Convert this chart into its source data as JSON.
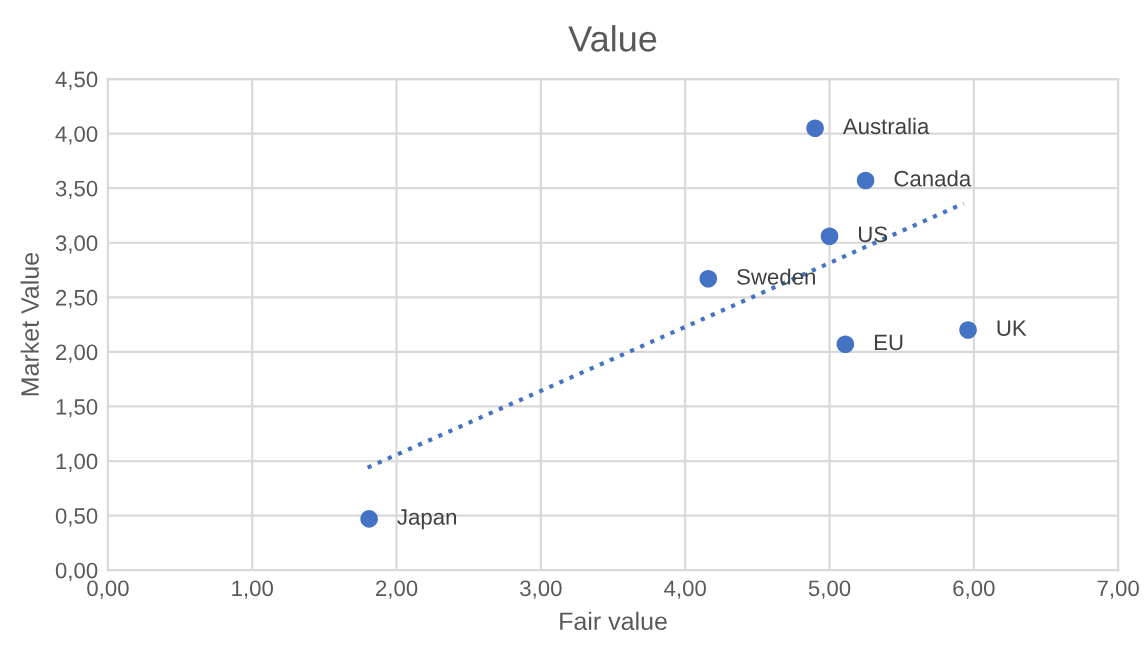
{
  "chart_data": {
    "type": "scatter",
    "title": "Value",
    "xlabel": "Fair value",
    "ylabel": "Market Value",
    "series": [
      {
        "color": "#4472c4",
        "x": [
          4.9,
          5.25,
          5.0,
          4.16,
          5.11,
          5.96,
          1.81
        ],
        "values": [
          4.05,
          3.57,
          3.06,
          2.67,
          2.07,
          2.2,
          0.47
        ],
        "marker": "circle"
      },
      {
        "type": "line",
        "color": "#4472c4",
        "x": [
          1.8,
          5.93
        ],
        "values": [
          0.94,
          3.36
        ],
        "line_style": "dotted",
        "marker": "none"
      }
    ],
    "annotations": [
      {
        "text": "Australia",
        "x": 4.9,
        "y": 4.05
      },
      {
        "text": "Canada",
        "x": 5.25,
        "y": 3.57
      },
      {
        "text": "US",
        "x": 5.0,
        "y": 3.06
      },
      {
        "text": "Sweden",
        "x": 4.16,
        "y": 2.67
      },
      {
        "text": "EU",
        "x": 5.11,
        "y": 2.07
      },
      {
        "text": "UK",
        "x": 5.96,
        "y": 2.2
      },
      {
        "text": "Japan",
        "x": 1.81,
        "y": 0.47
      }
    ],
    "xlim": [
      0,
      7
    ],
    "ylim": [
      0,
      4.5
    ],
    "xticks": [
      {
        "value": 0,
        "label": "0,00"
      },
      {
        "value": 1,
        "label": "1,00"
      },
      {
        "value": 2,
        "label": "2,00"
      },
      {
        "value": 3,
        "label": "3,00"
      },
      {
        "value": 4,
        "label": "4,00"
      },
      {
        "value": 5,
        "label": "5,00"
      },
      {
        "value": 6,
        "label": "6,00"
      },
      {
        "value": 7,
        "label": "7,00"
      }
    ],
    "yticks": [
      {
        "value": 0,
        "label": "0,00"
      },
      {
        "value": 0.5,
        "label": "0,50"
      },
      {
        "value": 1,
        "label": "1,00"
      },
      {
        "value": 1.5,
        "label": "1,50"
      },
      {
        "value": 2,
        "label": "2,00"
      },
      {
        "value": 2.5,
        "label": "2,50"
      },
      {
        "value": 3,
        "label": "3,00"
      },
      {
        "value": 3.5,
        "label": "3,50"
      },
      {
        "value": 4,
        "label": "4,00"
      },
      {
        "value": 4.5,
        "label": "4,50"
      }
    ],
    "grid": true,
    "legend": false
  }
}
